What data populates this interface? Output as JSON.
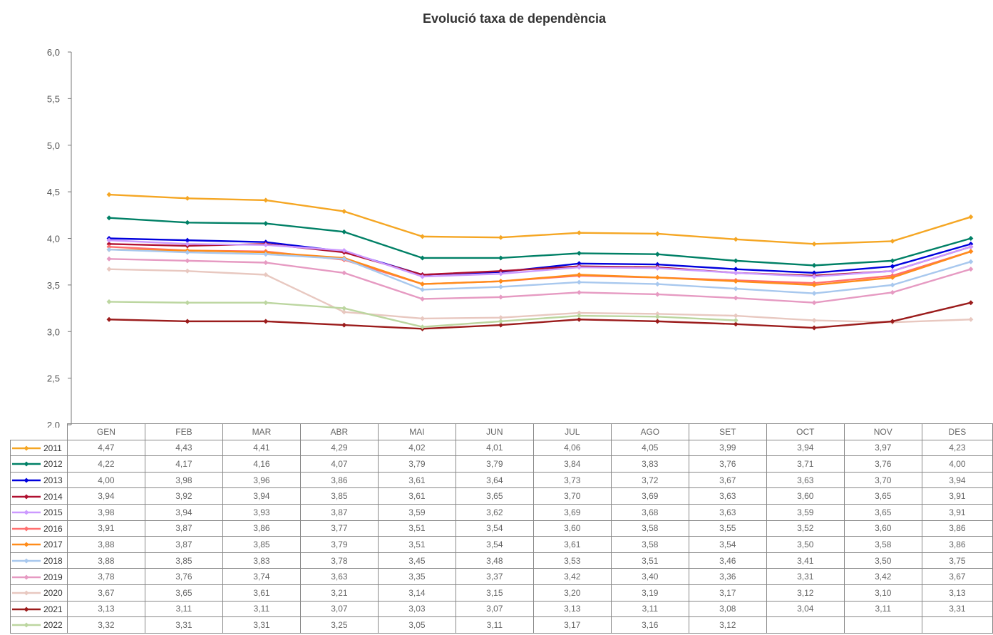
{
  "chart_data": {
    "type": "line",
    "title": "Evolució taxa de dependència",
    "ylim": [
      2.0,
      6.0
    ],
    "yticks": [
      "6,0",
      "5,5",
      "5,0",
      "4,5",
      "4,0",
      "3,5",
      "3,0",
      "2,5",
      "2,0"
    ],
    "ytick_values": [
      6.0,
      5.5,
      5.0,
      4.5,
      4.0,
      3.5,
      3.0,
      2.5,
      2.0
    ],
    "categories": [
      "GEN",
      "FEB",
      "MAR",
      "ABR",
      "MAI",
      "JUN",
      "JUL",
      "AGO",
      "SET",
      "OCT",
      "NOV",
      "DES"
    ],
    "legend": "data-table",
    "series": [
      {
        "name": "2011",
        "color": "#f5a623",
        "values": [
          4.47,
          4.43,
          4.41,
          4.29,
          4.02,
          4.01,
          4.06,
          4.05,
          3.99,
          3.94,
          3.97,
          4.23
        ],
        "labels": [
          "4,47",
          "4,43",
          "4,41",
          "4,29",
          "4,02",
          "4,01",
          "4,06",
          "4,05",
          "3,99",
          "3,94",
          "3,97",
          "4,23"
        ]
      },
      {
        "name": "2012",
        "color": "#008066",
        "values": [
          4.22,
          4.17,
          4.16,
          4.07,
          3.79,
          3.79,
          3.84,
          3.83,
          3.76,
          3.71,
          3.76,
          4.0
        ],
        "labels": [
          "4,22",
          "4,17",
          "4,16",
          "4,07",
          "3,79",
          "3,79",
          "3,84",
          "3,83",
          "3,76",
          "3,71",
          "3,76",
          "4,00"
        ]
      },
      {
        "name": "2013",
        "color": "#0000dd",
        "values": [
          4.0,
          3.98,
          3.96,
          3.86,
          3.61,
          3.64,
          3.73,
          3.72,
          3.67,
          3.63,
          3.7,
          3.94
        ],
        "labels": [
          "4,00",
          "3,98",
          "3,96",
          "3,86",
          "3,61",
          "3,64",
          "3,73",
          "3,72",
          "3,67",
          "3,63",
          "3,70",
          "3,94"
        ]
      },
      {
        "name": "2014",
        "color": "#b01030",
        "values": [
          3.94,
          3.92,
          3.94,
          3.85,
          3.61,
          3.65,
          3.7,
          3.69,
          3.63,
          3.6,
          3.65,
          3.91
        ],
        "labels": [
          "3,94",
          "3,92",
          "3,94",
          "3,85",
          "3,61",
          "3,65",
          "3,70",
          "3,69",
          "3,63",
          "3,60",
          "3,65",
          "3,91"
        ]
      },
      {
        "name": "2015",
        "color": "#cc99ff",
        "values": [
          3.98,
          3.94,
          3.93,
          3.87,
          3.59,
          3.62,
          3.69,
          3.68,
          3.63,
          3.59,
          3.65,
          3.91
        ],
        "labels": [
          "3,98",
          "3,94",
          "3,93",
          "3,87",
          "3,59",
          "3,62",
          "3,69",
          "3,68",
          "3,63",
          "3,59",
          "3,65",
          "3,91"
        ]
      },
      {
        "name": "2016",
        "color": "#ff6f6f",
        "values": [
          3.91,
          3.87,
          3.86,
          3.77,
          3.51,
          3.54,
          3.6,
          3.58,
          3.55,
          3.52,
          3.6,
          3.86
        ],
        "labels": [
          "3,91",
          "3,87",
          "3,86",
          "3,77",
          "3,51",
          "3,54",
          "3,60",
          "3,58",
          "3,55",
          "3,52",
          "3,60",
          "3,86"
        ]
      },
      {
        "name": "2017",
        "color": "#ff8c1a",
        "values": [
          3.88,
          3.87,
          3.85,
          3.79,
          3.51,
          3.54,
          3.61,
          3.58,
          3.54,
          3.5,
          3.58,
          3.86
        ],
        "labels": [
          "3,88",
          "3,87",
          "3,85",
          "3,79",
          "3,51",
          "3,54",
          "3,61",
          "3,58",
          "3,54",
          "3,50",
          "3,58",
          "3,86"
        ]
      },
      {
        "name": "2018",
        "color": "#a8c8ee",
        "values": [
          3.88,
          3.85,
          3.83,
          3.78,
          3.45,
          3.48,
          3.53,
          3.51,
          3.46,
          3.41,
          3.5,
          3.75
        ],
        "labels": [
          "3,88",
          "3,85",
          "3,83",
          "3,78",
          "3,45",
          "3,48",
          "3,53",
          "3,51",
          "3,46",
          "3,41",
          "3,50",
          "3,75"
        ]
      },
      {
        "name": "2019",
        "color": "#e69ac2",
        "values": [
          3.78,
          3.76,
          3.74,
          3.63,
          3.35,
          3.37,
          3.42,
          3.4,
          3.36,
          3.31,
          3.42,
          3.67
        ],
        "labels": [
          "3,78",
          "3,76",
          "3,74",
          "3,63",
          "3,35",
          "3,37",
          "3,42",
          "3,40",
          "3,36",
          "3,31",
          "3,42",
          "3,67"
        ]
      },
      {
        "name": "2020",
        "color": "#e8c8c0",
        "values": [
          3.67,
          3.65,
          3.61,
          3.21,
          3.14,
          3.15,
          3.2,
          3.19,
          3.17,
          3.12,
          3.1,
          3.13
        ],
        "labels": [
          "3,67",
          "3,65",
          "3,61",
          "3,21",
          "3,14",
          "3,15",
          "3,20",
          "3,19",
          "3,17",
          "3,12",
          "3,10",
          "3,13"
        ]
      },
      {
        "name": "2021",
        "color": "#9b1c1c",
        "values": [
          3.13,
          3.11,
          3.11,
          3.07,
          3.03,
          3.07,
          3.13,
          3.11,
          3.08,
          3.04,
          3.11,
          3.31
        ],
        "labels": [
          "3,13",
          "3,11",
          "3,11",
          "3,07",
          "3,03",
          "3,07",
          "3,13",
          "3,11",
          "3,08",
          "3,04",
          "3,11",
          "3,31"
        ]
      },
      {
        "name": "2022",
        "color": "#bcd6a0",
        "values": [
          3.32,
          3.31,
          3.31,
          3.25,
          3.05,
          3.11,
          3.17,
          3.16,
          3.12,
          null,
          null,
          null
        ],
        "labels": [
          "3,32",
          "3,31",
          "3,31",
          "3,25",
          "3,05",
          "3,11",
          "3,17",
          "3,16",
          "3,12",
          "",
          "",
          ""
        ]
      }
    ]
  }
}
